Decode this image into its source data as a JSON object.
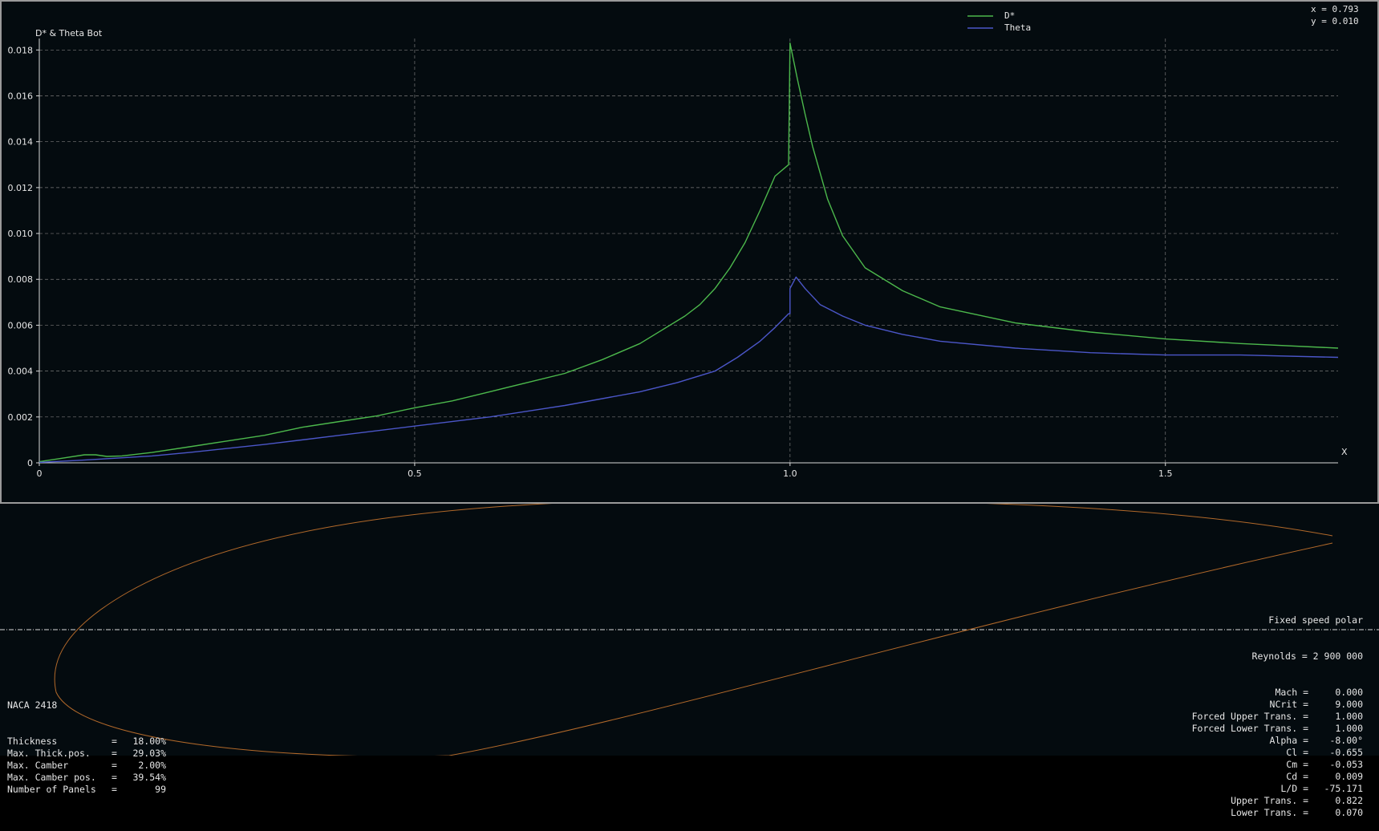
{
  "graph": {
    "y_axis_title": "D* & Theta Bot",
    "x_axis_title": "X",
    "cursor_x": "x =  0.793",
    "cursor_y": "y =  0.010",
    "legend": [
      {
        "label": "D*",
        "color": "#4cb84c"
      },
      {
        "label": "Theta",
        "color": "#4b56c8"
      }
    ]
  },
  "chart_data": {
    "type": "line",
    "xlabel": "X",
    "ylabel": "D* & Theta Bot",
    "xlim": [
      0,
      1.73
    ],
    "ylim": [
      0,
      0.0185
    ],
    "x_ticks": [
      "0",
      "0.5",
      "1.0",
      "1.5"
    ],
    "y_ticks": [
      "0",
      "0.002",
      "0.004",
      "0.006",
      "0.008",
      "0.010",
      "0.012",
      "0.014",
      "0.016",
      "0.018"
    ],
    "grid": true,
    "legend_position": "top-right",
    "series": [
      {
        "name": "D*",
        "color": "#4cb84c",
        "x": [
          0,
          0.03,
          0.06,
          0.075,
          0.09,
          0.11,
          0.15,
          0.2,
          0.25,
          0.3,
          0.35,
          0.4,
          0.45,
          0.5,
          0.55,
          0.6,
          0.65,
          0.7,
          0.75,
          0.8,
          0.83,
          0.86,
          0.88,
          0.9,
          0.92,
          0.94,
          0.96,
          0.98,
          0.998,
          1.0,
          1.0,
          1.01,
          1.02,
          1.03,
          1.05,
          1.07,
          1.1,
          1.15,
          1.2,
          1.3,
          1.4,
          1.5,
          1.6,
          1.73
        ],
        "values": [
          5e-05,
          0.0002,
          0.00035,
          0.00035,
          0.00028,
          0.0003,
          0.00045,
          0.0007,
          0.00095,
          0.0012,
          0.00155,
          0.0018,
          0.00205,
          0.0024,
          0.0027,
          0.0031,
          0.0035,
          0.0039,
          0.0045,
          0.0052,
          0.0058,
          0.0064,
          0.0069,
          0.0076,
          0.0085,
          0.0096,
          0.011,
          0.0125,
          0.013,
          0.0183,
          0.0183,
          0.0167,
          0.0152,
          0.0138,
          0.0115,
          0.0099,
          0.0085,
          0.0075,
          0.0068,
          0.0061,
          0.0057,
          0.0054,
          0.0052,
          0.005
        ]
      },
      {
        "name": "Theta",
        "color": "#4b56c8",
        "x": [
          0,
          0.05,
          0.1,
          0.15,
          0.2,
          0.3,
          0.4,
          0.5,
          0.6,
          0.7,
          0.8,
          0.85,
          0.9,
          0.93,
          0.96,
          0.98,
          0.998,
          1.0,
          1.0,
          1.008,
          1.02,
          1.04,
          1.07,
          1.1,
          1.15,
          1.2,
          1.3,
          1.4,
          1.5,
          1.6,
          1.73
        ],
        "values": [
          2e-05,
          0.0001,
          0.0002,
          0.0003,
          0.00045,
          0.0008,
          0.0012,
          0.0016,
          0.002,
          0.0025,
          0.0031,
          0.0035,
          0.004,
          0.0046,
          0.0053,
          0.0059,
          0.0065,
          0.0065,
          0.0076,
          0.0081,
          0.0076,
          0.0069,
          0.0064,
          0.006,
          0.0056,
          0.0053,
          0.005,
          0.0048,
          0.0047,
          0.0047,
          0.0046
        ]
      }
    ]
  },
  "foil": {
    "color": "#b2692a",
    "name": "NACA 2418",
    "props": [
      {
        "label": "Thickness",
        "value": "18.00%"
      },
      {
        "label": "Max. Thick.pos.",
        "value": "29.03%"
      },
      {
        "label": "Max. Camber",
        "value": "2.00%"
      },
      {
        "label": "Max. Camber pos.",
        "value": "39.54%"
      },
      {
        "label": "Number of Panels",
        "value": "99"
      }
    ]
  },
  "polar": {
    "title": "Fixed speed polar",
    "reynolds": "Reynolds = 2 900 000",
    "rows": [
      {
        "label": "Mach =",
        "value": "0.000"
      },
      {
        "label": "NCrit =",
        "value": "9.000"
      },
      {
        "label": "Forced Upper Trans. =",
        "value": "1.000"
      },
      {
        "label": "Forced Lower Trans. =",
        "value": "1.000"
      },
      {
        "label": "Alpha =",
        "value": "-8.00°"
      },
      {
        "label": "Cl =",
        "value": "-0.655"
      },
      {
        "label": "Cm =",
        "value": "-0.053"
      },
      {
        "label": "Cd =",
        "value": "0.009"
      },
      {
        "label": "L/D =",
        "value": "-75.171"
      },
      {
        "label": "Upper Trans. =",
        "value": "0.822"
      },
      {
        "label": "Lower Trans. =",
        "value": "0.070"
      }
    ]
  }
}
